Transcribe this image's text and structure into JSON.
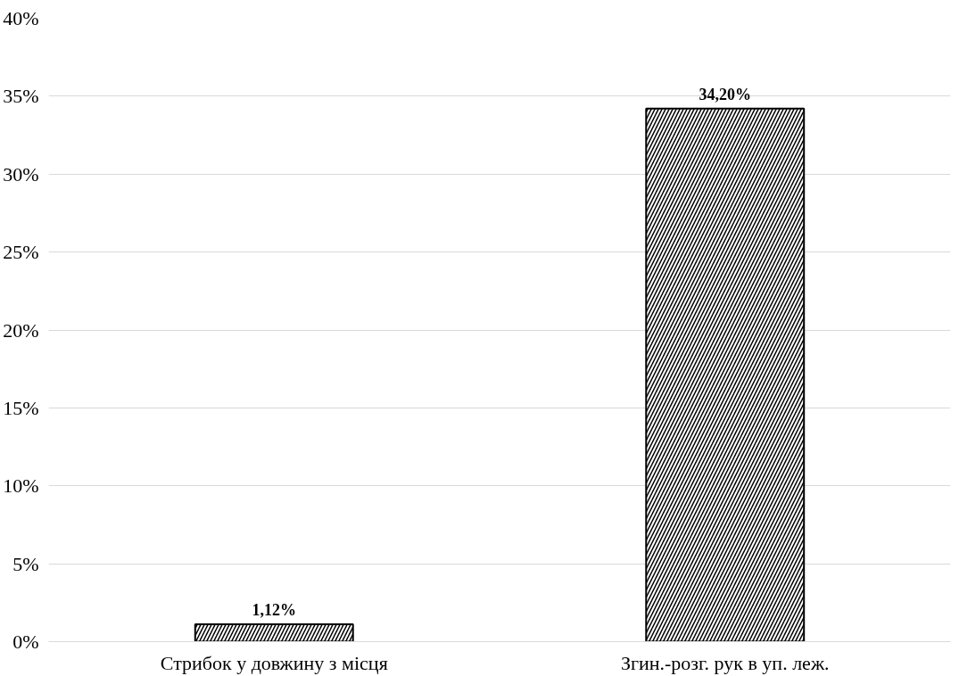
{
  "chart_data": {
    "type": "bar",
    "categories": [
      "Стрибок у довжину з місця",
      "Згин.-розг. рук в уп. леж."
    ],
    "values": [
      1.12,
      34.2
    ],
    "color": "#000000",
    "value_labels": [
      "1,12%",
      "34,20%"
    ],
    "ylim": [
      0,
      40
    ],
    "yticks": [
      {
        "value": 0,
        "label": "0%"
      },
      {
        "value": 5,
        "label": "5%"
      },
      {
        "value": 10,
        "label": "10%"
      },
      {
        "value": 15,
        "label": "15%"
      },
      {
        "value": 20,
        "label": "20%"
      },
      {
        "value": 25,
        "label": "25%"
      },
      {
        "value": 30,
        "label": "30%"
      },
      {
        "value": 35,
        "label": "35%"
      },
      {
        "value": 40,
        "label": "40%"
      }
    ],
    "grid": "y"
  }
}
